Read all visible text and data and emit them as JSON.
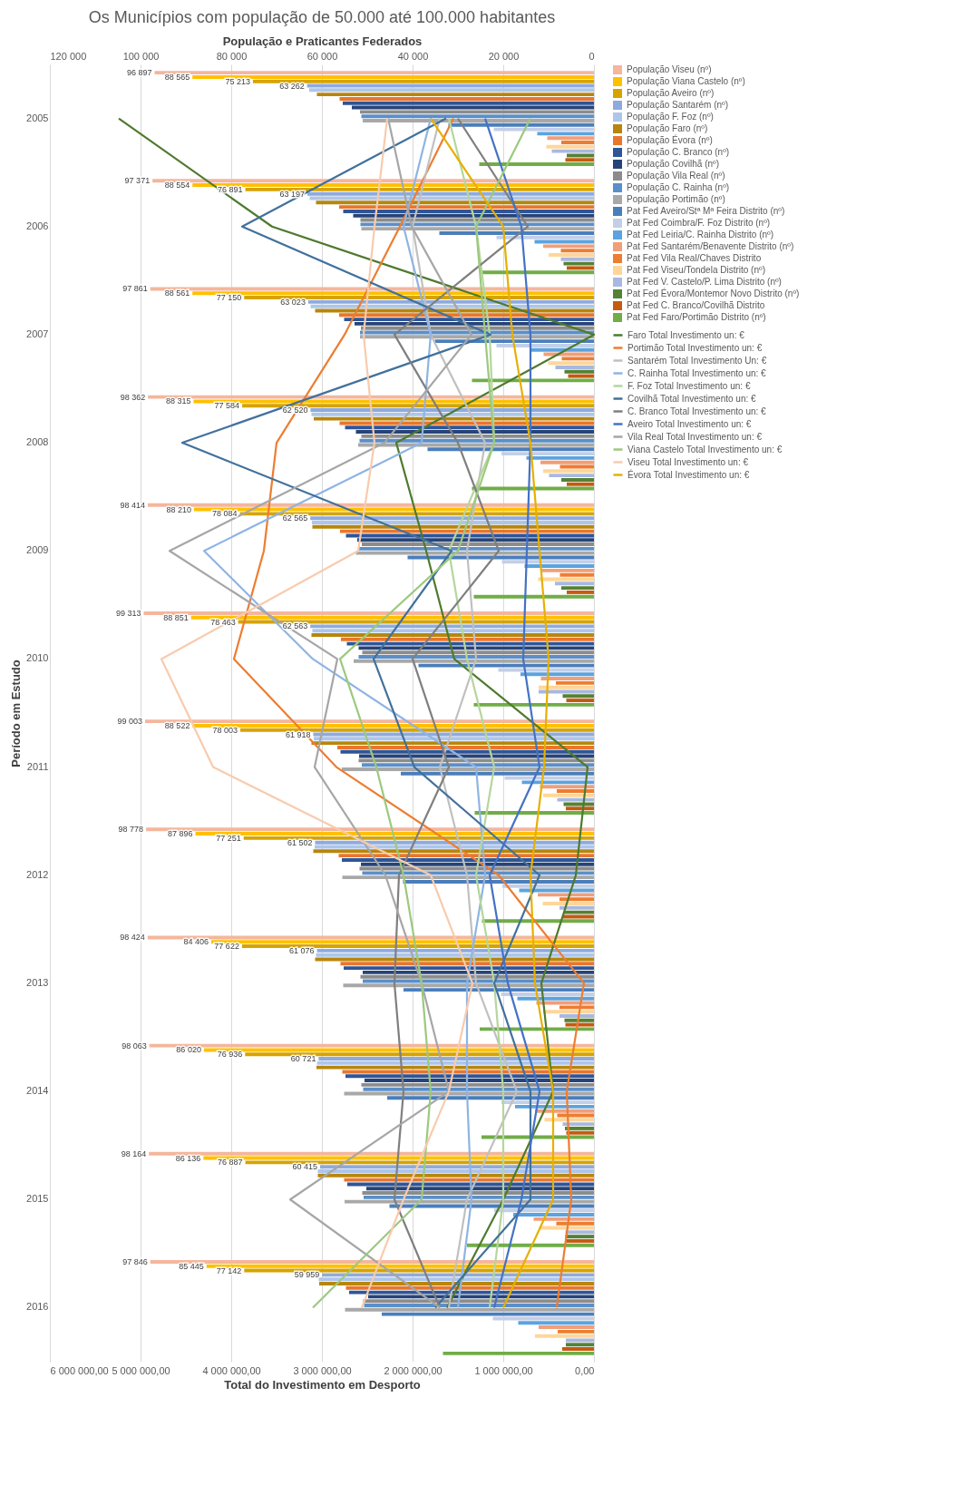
{
  "chart_data": {
    "type": "bar",
    "orientation": "horizontal",
    "title": "Os Municípios com população de 50.000 até 100.000 habitantes",
    "ylabel": "Período em Estudo",
    "x2label": "População e Praticantes Federados",
    "xlabel": "Total do Investimento em Desporto",
    "categories": [
      "2005",
      "2006",
      "2007",
      "2008",
      "2009",
      "2010",
      "2011",
      "2012",
      "2013",
      "2014",
      "2015",
      "2016"
    ],
    "x2lim": [
      120000,
      0
    ],
    "x2ticks": [
      {
        "value": 0,
        "label": "0"
      },
      {
        "value": 20000,
        "label": "20 000"
      },
      {
        "value": 40000,
        "label": "40 000"
      },
      {
        "value": 60000,
        "label": "60 000"
      },
      {
        "value": 80000,
        "label": "80 000"
      },
      {
        "value": 100000,
        "label": "100 000"
      },
      {
        "value": 120000,
        "label": "120 000"
      }
    ],
    "xlim": [
      6000000,
      0
    ],
    "xticks": [
      {
        "value": 0,
        "label": "0,00"
      },
      {
        "value": 1000000,
        "label": "1 000 000,00"
      },
      {
        "value": 2000000,
        "label": "2 000 000,00"
      },
      {
        "value": 3000000,
        "label": "3 000 000,00"
      },
      {
        "value": 4000000,
        "label": "4 000 000,00"
      },
      {
        "value": 5000000,
        "label": "5 000 000,00"
      },
      {
        "value": 6000000,
        "label": "6 000 000,00"
      }
    ],
    "grid": "x2",
    "legend": "right",
    "series": [
      {
        "name": "População Viseu (nº)",
        "axis": "x2",
        "color": "#f4b69c",
        "values": [
          96897,
          97371,
          97861,
          98362,
          98414,
          99313,
          99003,
          98778,
          98424,
          98063,
          98164,
          97846
        ],
        "value_labels": [
          "96 897",
          "97 371",
          "97 861",
          "98 362",
          "98 414",
          "99 313",
          "99 003",
          "98 778",
          "98 424",
          "98 063",
          "98 164",
          "97 846"
        ]
      },
      {
        "name": "População Viana Castelo (nº)",
        "axis": "x2",
        "color": "#ffc000",
        "values": [
          88565,
          88554,
          88561,
          88315,
          88210,
          88851,
          88522,
          87896,
          84406,
          86020,
          86136,
          85445
        ],
        "value_labels": [
          "88 565",
          "88 554",
          "88 561",
          "88 315",
          "88 210",
          "88 851",
          "88 522",
          "87 896",
          "84 406",
          "86 020",
          "86 136",
          "85 445"
        ]
      },
      {
        "name": "População Aveiro (nº)",
        "axis": "x2",
        "color": "#d6a300",
        "values": [
          75213,
          76891,
          77150,
          77584,
          78084,
          78463,
          78003,
          77251,
          77622,
          76936,
          76887,
          77142
        ],
        "value_labels": [
          "75 213",
          "76 891",
          "77 150",
          "77 584",
          "78 084",
          "78 463",
          "78 003",
          "77 251",
          "77 622",
          "76 936",
          "76 887",
          "77 142"
        ]
      },
      {
        "name": "População Santarém (nº)",
        "axis": "x2",
        "color": "#8faadc",
        "values": [
          63262,
          63197,
          63023,
          62520,
          62565,
          62563,
          61918,
          61502,
          61076,
          60721,
          60415,
          59959
        ],
        "value_labels": [
          "63 262",
          "63 197",
          "63 023",
          "62 520",
          "62 565",
          "62 563",
          "61 918",
          "61 502",
          "61 076",
          "60 721",
          "60 415",
          "59 959"
        ]
      },
      {
        "name": "População F. Foz (nº)",
        "axis": "x2",
        "color": "#adc6ea",
        "values": [
          62800,
          62700,
          62500,
          62300,
          62200,
          62100,
          61800,
          61600,
          61300,
          61100,
          60900,
          60700
        ]
      },
      {
        "name": "População Faro (nº)",
        "axis": "x2",
        "color": "#b8860b",
        "values": [
          61100,
          61300,
          61500,
          61800,
          62100,
          62300,
          62300,
          61900,
          61500,
          61200,
          60900,
          60600
        ]
      },
      {
        "name": "População Évora (nº)",
        "axis": "x2",
        "color": "#e8762d",
        "values": [
          56100,
          56200,
          56200,
          56100,
          56000,
          55800,
          56600,
          56300,
          55900,
          55500,
          55100,
          54700
        ]
      },
      {
        "name": "População C. Branco (nº)",
        "axis": "x2",
        "color": "#2f5597",
        "values": [
          55400,
          55300,
          55100,
          54900,
          54700,
          54500,
          55900,
          55600,
          55200,
          54800,
          54400,
          54000
        ]
      },
      {
        "name": "População Covilhã (nº)",
        "axis": "x2",
        "color": "#264478",
        "values": [
          53400,
          53100,
          52800,
          52500,
          52200,
          51900,
          51800,
          51400,
          51000,
          50600,
          50200,
          49800
        ]
      },
      {
        "name": "População Vila Real (nº)",
        "axis": "x2",
        "color": "#8c8c8c",
        "values": [
          51600,
          51500,
          51400,
          51300,
          51200,
          51100,
          51900,
          51700,
          51500,
          51300,
          51100,
          50900
        ]
      },
      {
        "name": "População C. Rainha (nº)",
        "axis": "x2",
        "color": "#5b8fc9",
        "values": [
          51300,
          51500,
          51600,
          51700,
          51800,
          51900,
          51200,
          51100,
          51000,
          50900,
          50800,
          50700
        ]
      },
      {
        "name": "População Portimão (nº)",
        "axis": "x2",
        "color": "#a8a8a8",
        "values": [
          51000,
          51300,
          51600,
          52000,
          52500,
          53000,
          55600,
          55500,
          55300,
          55100,
          55000,
          54900
        ]
      },
      {
        "name": "Pat Fed Aveiro/Stª Mª Feira Distrito (nº)",
        "axis": "x2",
        "color": "#4a7ebb",
        "values": [
          32100,
          34100,
          35100,
          36700,
          41100,
          38700,
          42600,
          42100,
          42000,
          45600,
          45100,
          46800
        ]
      },
      {
        "name": "Pat Fed Coimbra/F. Foz Distrito (nº)",
        "axis": "x2",
        "color": "#c3cfe8",
        "values": [
          22100,
          21500,
          21500,
          20400,
          20300,
          21100,
          19700,
          20200,
          20500,
          20400,
          22000,
          22300
        ]
      },
      {
        "name": "Pat Fed Leiria/C. Rainha Distrito (nº)",
        "axis": "x2",
        "color": "#5ba3e0",
        "values": [
          12500,
          13100,
          14100,
          14900,
          15300,
          16200,
          15900,
          16500,
          16900,
          17400,
          17800,
          16700
        ]
      },
      {
        "name": "Pat Fed Santarém/Benavente Distrito (nº)",
        "axis": "x2",
        "color": "#f19e7a",
        "values": [
          10300,
          11200,
          11100,
          11800,
          11700,
          11700,
          11900,
          12400,
          12700,
          13000,
          13300,
          12200
        ]
      },
      {
        "name": "Pat Fed Vila Real/Chaves Distrito",
        "axis": "x2",
        "color": "#ed7d31",
        "values": [
          7200,
          7300,
          7100,
          7500,
          7500,
          8400,
          8200,
          7600,
          7600,
          8100,
          8300,
          8000
        ]
      },
      {
        "name": "Pat Fed Viseu/Tondela Distrito (nº)",
        "axis": "x2",
        "color": "#ffd699",
        "values": [
          10500,
          10000,
          10100,
          11200,
          12300,
          12200,
          11200,
          11300,
          11200,
          10900,
          12100,
          13000
        ]
      },
      {
        "name": "Pat Fed V. Castelo/P. Lima Distrito (nº)",
        "axis": "x2",
        "color": "#a9b8e0",
        "values": [
          9300,
          7300,
          8500,
          9900,
          8600,
          12200,
          8100,
          7600,
          7600,
          6900,
          6300,
          6200
        ]
      },
      {
        "name": "Pat Fed Évora/Montemor Novo Distrito (nº)",
        "axis": "x2",
        "color": "#548235",
        "values": [
          6000,
          6700,
          6500,
          7200,
          7200,
          6900,
          6700,
          6600,
          6500,
          6400,
          6300,
          6200
        ]
      },
      {
        "name": "Pat Fed C. Branco/Covilhã Distrito",
        "axis": "x2",
        "color": "#c55a11",
        "values": [
          6300,
          6000,
          5700,
          6000,
          6000,
          6100,
          6200,
          6900,
          6300,
          6100,
          6200,
          7000
        ]
      },
      {
        "name": "Pat Fed Faro/Portimão  Distrito (nº)",
        "axis": "x2",
        "color": "#70ad47",
        "values": [
          25300,
          24900,
          26900,
          26900,
          26500,
          26500,
          26300,
          24700,
          25200,
          24800,
          28000,
          33300
        ]
      },
      {
        "name": "Faro Total Investimento  un: €",
        "type": "line",
        "color": "#4e7a2e",
        "values": [
          5240000,
          3550000,
          0,
          2180000,
          1850000,
          1540000,
          70000,
          200000,
          580000,
          450000,
          1000000,
          1620000
        ]
      },
      {
        "name": "Portimão Total Investimento  un: €",
        "type": "line",
        "color": "#ed7d31",
        "values": [
          1550000,
          2140000,
          2750000,
          3500000,
          3640000,
          3970000,
          2840000,
          1050000,
          110000,
          300000,
          250000,
          410000
        ]
      },
      {
        "name": "Santarém Total Investimento  Un: €",
        "type": "line",
        "color": "#c0c0c0",
        "values": [
          1700000,
          2000000,
          1800000,
          1200000,
          1400000,
          1300000,
          1700000,
          1400000,
          1300000,
          850000,
          1400000,
          1600000
        ]
      },
      {
        "name": "C. Rainha Total Investimento  un: €",
        "type": "line",
        "color": "#8fb4e3",
        "values": [
          1800000,
          2100000,
          1800000,
          1900000,
          4300000,
          3100000,
          1300000,
          1200000,
          1400000,
          1400000,
          1350000,
          1500000
        ]
      },
      {
        "name": "F. Foz Total Investimento  un: €",
        "type": "line",
        "color": "#b5d69c",
        "values": [
          1600000,
          1300000,
          1150000,
          1100000,
          1600000,
          1400000,
          1100000,
          1300000,
          1100000,
          1000000,
          1000000,
          1150000
        ]
      },
      {
        "name": "Covilhã Total Investimento  un: €",
        "type": "line",
        "color": "#41719c",
        "values": [
          1630000,
          3880000,
          1140000,
          4540000,
          1570000,
          2430000,
          1980000,
          600000,
          1100000,
          700000,
          700000,
          1750000
        ]
      },
      {
        "name": "C. Branco Total Investimento  un: €",
        "type": "line",
        "color": "#7f7f7f",
        "values": [
          1500000,
          730000,
          2200000,
          1500000,
          1050000,
          2000000,
          1600000,
          2150000,
          2200000,
          2100000,
          2200000,
          1700000
        ]
      },
      {
        "name": "Aveiro Total Investimento  un: €",
        "type": "line",
        "color": "#4472c4",
        "values": [
          1200000,
          800000,
          700000,
          700000,
          740000,
          780000,
          600000,
          1150000,
          950000,
          600000,
          800000,
          1100000
        ]
      },
      {
        "name": "Vila Real Total Investimento  un: €",
        "type": "line",
        "color": "#a6a6a6",
        "values": [
          2270000,
          2010000,
          1350000,
          2310000,
          4680000,
          2830000,
          3080000,
          2300000,
          1900000,
          1600000,
          3350000,
          1700000
        ]
      },
      {
        "name": "Viana Castelo Total Investimento  un: €",
        "type": "line",
        "color": "#9cc97e",
        "values": [
          700000,
          1300000,
          1200000,
          1100000,
          1500000,
          2800000,
          2400000,
          2100000,
          1900000,
          1800000,
          1900000,
          3100000
        ]
      },
      {
        "name": "Viseu Total Investimento  un: €",
        "type": "line",
        "color": "#f8cbad",
        "values": [
          2280000,
          2420000,
          2540000,
          2420000,
          2600000,
          4770000,
          4200000,
          1800000,
          1340000,
          1600000,
          2100000,
          2560000
        ]
      },
      {
        "name": "Évora Total Investimento  un: €",
        "type": "line",
        "color": "#e6b000",
        "values": [
          1800000,
          1000000,
          900000,
          700000,
          600000,
          500000,
          550000,
          700000,
          650000,
          450000,
          450000,
          1000000
        ]
      }
    ]
  }
}
